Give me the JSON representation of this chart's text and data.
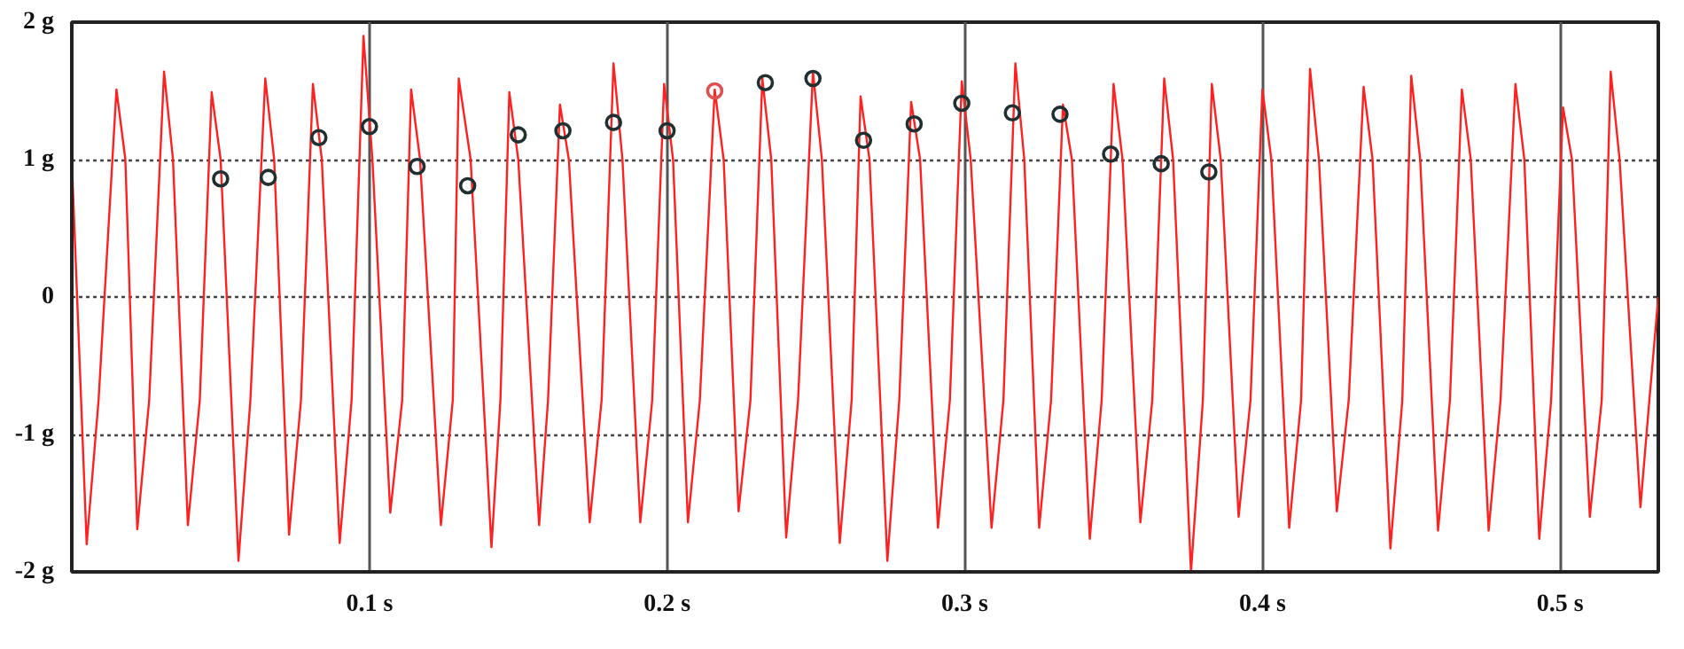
{
  "chart_data": {
    "type": "line",
    "xlim": [
      0,
      0.533
    ],
    "ylim": [
      -2,
      2
    ],
    "xticks": [
      {
        "value": 0.1,
        "label": "0.1 s"
      },
      {
        "value": 0.2,
        "label": "0.2 s"
      },
      {
        "value": 0.3,
        "label": "0.3 s"
      },
      {
        "value": 0.4,
        "label": "0.4 s"
      },
      {
        "value": 0.5,
        "label": "0.5 s"
      }
    ],
    "yticks": [
      {
        "value": -2,
        "label": "-2 g"
      },
      {
        "value": -1,
        "label": "-1 g"
      },
      0,
      {
        "value": 1,
        "label": "1 g"
      },
      {
        "value": 2,
        "label": "2 g"
      }
    ],
    "grid": true,
    "marker": "none",
    "line_style": "solid",
    "series": [
      {
        "color": "#ff2020",
        "x": [
          0.0,
          0.005,
          0.009,
          0.015,
          0.018,
          0.022,
          0.026,
          0.031,
          0.034,
          0.039,
          0.043,
          0.047,
          0.05,
          0.056,
          0.06,
          0.065,
          0.068,
          0.073,
          0.077,
          0.081,
          0.084,
          0.09,
          0.094,
          0.098,
          0.101,
          0.107,
          0.111,
          0.114,
          0.117,
          0.124,
          0.128,
          0.13,
          0.134,
          0.141,
          0.144,
          0.147,
          0.15,
          0.157,
          0.16,
          0.164,
          0.167,
          0.174,
          0.178,
          0.182,
          0.185,
          0.191,
          0.195,
          0.199,
          0.202,
          0.207,
          0.211,
          0.216,
          0.219,
          0.224,
          0.228,
          0.232,
          0.235,
          0.24,
          0.244,
          0.249,
          0.252,
          0.258,
          0.262,
          0.265,
          0.268,
          0.274,
          0.278,
          0.282,
          0.285,
          0.291,
          0.295,
          0.299,
          0.302,
          0.309,
          0.313,
          0.317,
          0.32,
          0.325,
          0.329,
          0.333,
          0.336,
          0.342,
          0.346,
          0.35,
          0.353,
          0.359,
          0.363,
          0.367,
          0.37,
          0.376,
          0.38,
          0.383,
          0.386,
          0.392,
          0.396,
          0.4,
          0.403,
          0.409,
          0.413,
          0.416,
          0.419,
          0.425,
          0.429,
          0.434,
          0.437,
          0.443,
          0.447,
          0.45,
          0.453,
          0.459,
          0.463,
          0.467,
          0.47,
          0.476,
          0.48,
          0.485,
          0.488,
          0.493,
          0.497,
          0.501,
          0.504,
          0.51,
          0.514,
          0.517,
          0.52,
          0.527,
          0.53,
          0.533
        ],
        "values": [
          1.0,
          -1.8,
          -0.75,
          1.51,
          1.0,
          -1.69,
          -0.75,
          1.64,
          1.0,
          -1.66,
          -0.75,
          1.49,
          1.0,
          -1.92,
          -0.75,
          1.59,
          1.0,
          -1.73,
          -0.75,
          1.55,
          1.0,
          -1.79,
          -0.75,
          1.9,
          1.0,
          -1.57,
          -0.75,
          1.51,
          1.0,
          -1.66,
          -0.75,
          1.59,
          1.0,
          -1.82,
          -0.75,
          1.49,
          1.0,
          -1.66,
          -0.75,
          1.4,
          1.0,
          -1.64,
          -0.75,
          1.7,
          1.0,
          -1.64,
          -0.75,
          1.55,
          1.0,
          -1.64,
          -0.75,
          1.51,
          1.0,
          -1.56,
          -0.75,
          1.59,
          1.0,
          -1.75,
          -0.75,
          1.64,
          1.0,
          -1.79,
          -0.75,
          1.46,
          1.0,
          -1.92,
          -0.75,
          1.42,
          1.0,
          -1.68,
          -0.75,
          1.57,
          1.0,
          -1.68,
          -0.75,
          1.7,
          1.0,
          -1.68,
          -0.75,
          1.4,
          1.0,
          -1.76,
          -0.75,
          1.55,
          1.0,
          -1.64,
          -0.75,
          1.59,
          1.0,
          -2.0,
          -0.75,
          1.55,
          1.0,
          -1.6,
          -0.75,
          1.51,
          1.0,
          -1.68,
          -0.75,
          1.66,
          1.0,
          -1.56,
          -0.75,
          1.53,
          1.0,
          -1.83,
          -0.75,
          1.61,
          1.0,
          -1.7,
          -0.75,
          1.51,
          1.0,
          -1.7,
          -0.75,
          1.55,
          1.0,
          -1.76,
          -0.75,
          1.38,
          1.0,
          -1.6,
          -0.75,
          1.64,
          1.0,
          -1.53,
          -0.75,
          0.0
        ]
      },
      {
        "type": "scatter",
        "marker": "circle",
        "colors": [
          "#203030",
          "#203030",
          "#203030",
          "#203030",
          "#203030",
          "#203030",
          "#203030",
          "#203030",
          "#203030",
          "#203030",
          "#e05050",
          "#203030",
          "#203030",
          "#203030",
          "#203030",
          "#203030",
          "#203030",
          "#203030",
          "#203030",
          "#203030",
          "#203030"
        ],
        "x": [
          0.05,
          0.066,
          0.083,
          0.1,
          0.116,
          0.133,
          0.15,
          0.165,
          0.182,
          0.2,
          0.216,
          0.233,
          0.249,
          0.266,
          0.283,
          0.299,
          0.316,
          0.332,
          0.349,
          0.366,
          0.382
        ],
        "values": [
          0.86,
          0.87,
          1.16,
          1.24,
          0.95,
          0.81,
          1.18,
          1.21,
          1.27,
          1.21,
          1.5,
          1.56,
          1.59,
          1.14,
          1.26,
          1.41,
          1.34,
          1.33,
          1.04,
          0.97,
          0.91
        ]
      }
    ]
  }
}
